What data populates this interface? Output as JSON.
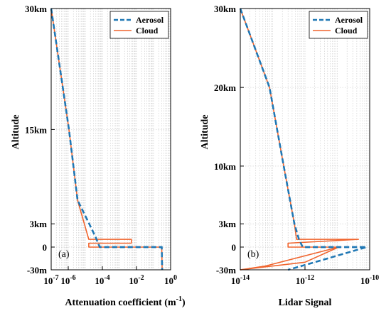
{
  "chart_data": [
    {
      "type": "line",
      "panel_tag": "(a)",
      "xlabel": "Attenuation coefficient (m",
      "xlabel_sup": "-1",
      "xlabel_end": ")",
      "ylabel": "Altitude",
      "xscale": "log",
      "xlim": [
        1e-07,
        1
      ],
      "ylim": [
        -30,
        30
      ],
      "x_ticks": [
        {
          "value": 1e-07,
          "base": "10",
          "exp": "-7"
        },
        {
          "value": 1e-06,
          "base": "10",
          "exp": "-6"
        },
        {
          "value": 0.0001,
          "base": "10",
          "exp": "-4"
        },
        {
          "value": 0.01,
          "base": "10",
          "exp": "-2"
        },
        {
          "value": 1,
          "base": "10",
          "exp": "0"
        }
      ],
      "y_ticks": [
        {
          "value": 30,
          "label": "30km"
        },
        {
          "value": 15,
          "label": "15km"
        },
        {
          "value": 3,
          "label": "3km"
        },
        {
          "value": 0,
          "label": "0"
        },
        {
          "value": -30,
          "label": "-30m"
        }
      ],
      "grid": true,
      "legend_position": "top-right",
      "series": [
        {
          "name": "Aerosol",
          "color": "#1f77b4",
          "style": "dashed",
          "points": [
            [
              1e-07,
              30
            ],
            [
              1.1e-06,
              15
            ],
            [
              3.5e-06,
              6
            ],
            [
              1.7e-05,
              3
            ],
            [
              4e-05,
              1.3
            ],
            [
              7e-05,
              0
            ],
            [
              0.3,
              0
            ],
            [
              0.32,
              -30
            ]
          ]
        },
        {
          "name": "Cloud",
          "color": "#f0642d",
          "style": "solid",
          "points": [
            [
              1e-07,
              30
            ],
            [
              1.1e-06,
              15
            ],
            [
              3.5e-06,
              6
            ],
            [
              1.6e-05,
              1.0
            ],
            [
              0.005,
              1.0
            ],
            [
              0.005,
              0.5
            ],
            [
              1.6e-05,
              0.5
            ],
            [
              1.6e-05,
              0
            ],
            [
              0.3,
              0
            ],
            [
              0.32,
              -30
            ]
          ]
        }
      ]
    },
    {
      "type": "line",
      "panel_tag": "(b)",
      "xlabel": "Lidar Signal",
      "ylabel": "Altitude",
      "xscale": "log",
      "xlim": [
        1e-14,
        1e-10
      ],
      "ylim": [
        -30,
        30
      ],
      "x_ticks": [
        {
          "value": 1e-14,
          "base": "10",
          "exp": "-14"
        },
        {
          "value": 1e-12,
          "base": "10",
          "exp": "-12"
        },
        {
          "value": 1e-10,
          "base": "10",
          "exp": "-10"
        }
      ],
      "y_ticks": [
        {
          "value": 30,
          "label": "30km"
        },
        {
          "value": 20,
          "label": "20km"
        },
        {
          "value": 10,
          "label": "10km"
        },
        {
          "value": 3,
          "label": "3km"
        },
        {
          "value": 0,
          "label": "0"
        },
        {
          "value": -30,
          "label": "-30m"
        }
      ],
      "grid": true,
      "legend_position": "top-right",
      "series": [
        {
          "name": "Aerosol",
          "color": "#1f77b4",
          "style": "dashed",
          "points": [
            [
              1e-14,
              30
            ],
            [
              8e-14,
              20
            ],
            [
              2.2e-13,
              10
            ],
            [
              4.7e-13,
              3
            ],
            [
              6.5e-13,
              1.0
            ],
            [
              8.5e-13,
              0
            ],
            [
              8e-11,
              0
            ],
            [
              2e-12,
              -20
            ],
            [
              3e-13,
              -30
            ]
          ]
        },
        {
          "name": "Cloud",
          "color": "#f0642d",
          "style": "solid",
          "points": [
            [
              1e-14,
              30
            ],
            [
              8e-14,
              20
            ],
            [
              2.2e-13,
              10
            ],
            [
              4.7e-13,
              3
            ],
            [
              5.5e-13,
              1.0
            ],
            [
              1.6e-11,
              1.0
            ],
            [
              4.5e-11,
              1.0
            ],
            [
              3e-13,
              0.5
            ],
            [
              3e-13,
              0
            ],
            [
              1.1e-11,
              0
            ],
            [
              6e-14,
              -25
            ],
            [
              1e-14,
              -30
            ]
          ]
        },
        {
          "name": "",
          "color": "#f0642d",
          "style": "solid",
          "points": [
            [
              1.1e-11,
              0
            ],
            [
              1e-12,
              -20
            ],
            [
              1e-14,
              -30
            ]
          ]
        }
      ]
    }
  ]
}
